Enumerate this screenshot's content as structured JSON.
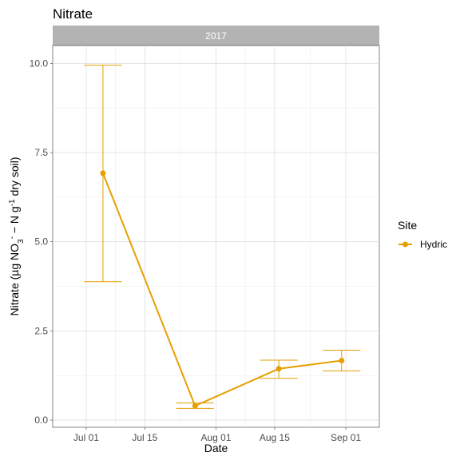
{
  "chart_data": {
    "type": "line",
    "title": "Nitrate",
    "facet_label": "2017",
    "xlabel": "Date",
    "ylabel": {
      "prefix": "Nitrate (µg NO",
      "sub1": "3",
      "sup1": "-",
      "mid": " − N g",
      "sup2": "-1",
      "suffix": " dry soil)"
    },
    "x_ticks": [
      {
        "date": "2017-07-01",
        "label": "Jul 01"
      },
      {
        "date": "2017-07-15",
        "label": "Jul 15"
      },
      {
        "date": "2017-08-01",
        "label": "Aug 01"
      },
      {
        "date": "2017-08-15",
        "label": "Aug 15"
      },
      {
        "date": "2017-09-01",
        "label": "Sep 01"
      }
    ],
    "xlim": [
      "2017-06-23",
      "2017-09-09"
    ],
    "y_ticks": [
      {
        "value": 0.0,
        "label": "0.0"
      },
      {
        "value": 2.5,
        "label": "2.5"
      },
      {
        "value": 5.0,
        "label": "5.0"
      },
      {
        "value": 7.5,
        "label": "7.5"
      },
      {
        "value": 10.0,
        "label": "10.0"
      }
    ],
    "ylim": [
      -0.2,
      10.5
    ],
    "grid": true,
    "legend_title": "Site",
    "legend_position": "right",
    "series": [
      {
        "name": "Hydric",
        "color": "#E69F00",
        "points": [
          {
            "x": "2017-07-05",
            "y": 6.92,
            "ymin": 3.88,
            "ymax": 9.95
          },
          {
            "x": "2017-07-27",
            "y": 0.4,
            "ymin": 0.33,
            "ymax": 0.48
          },
          {
            "x": "2017-08-16",
            "y": 1.44,
            "ymin": 1.17,
            "ymax": 1.68
          },
          {
            "x": "2017-08-31",
            "y": 1.67,
            "ymin": 1.38,
            "ymax": 1.96
          }
        ]
      }
    ]
  }
}
